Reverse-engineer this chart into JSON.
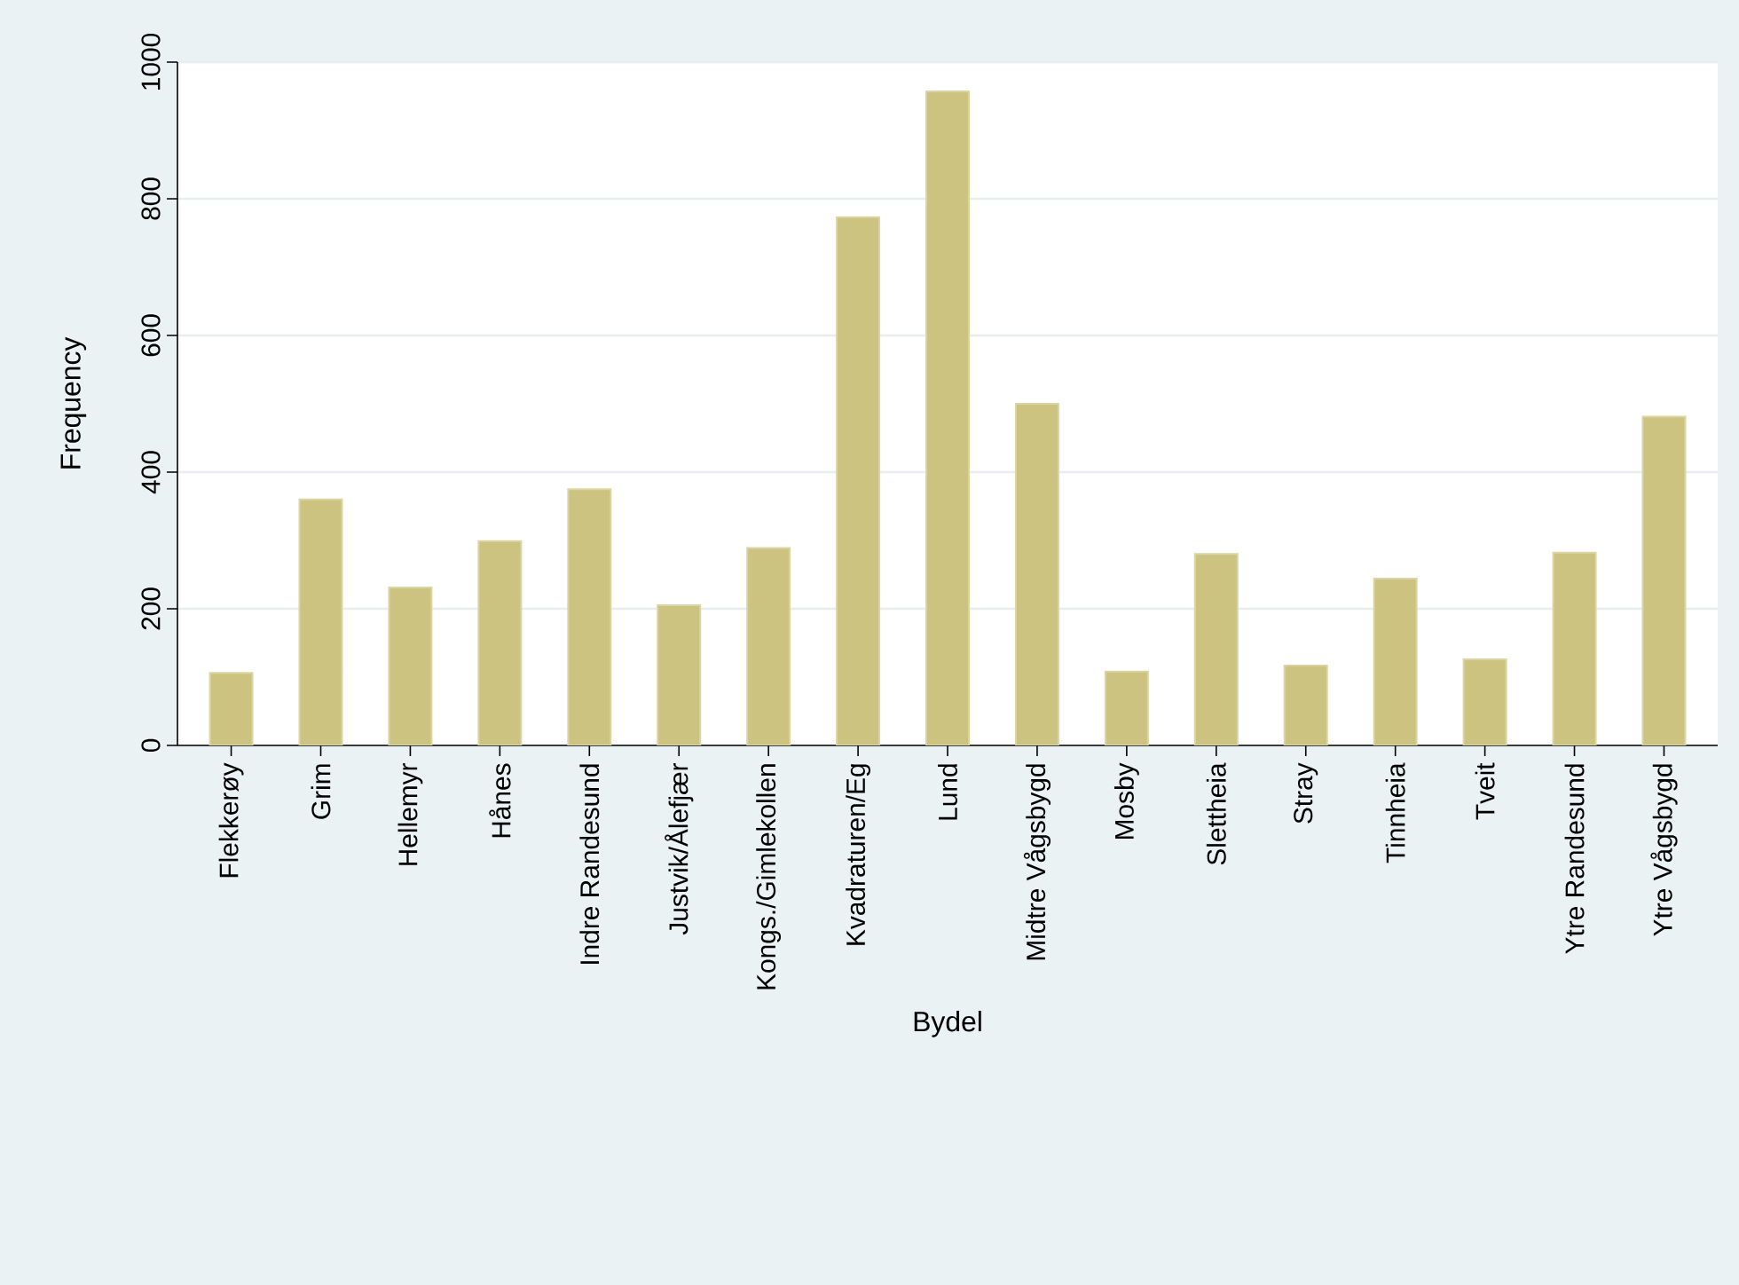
{
  "chart_data": {
    "type": "bar",
    "xlabel": "Bydel",
    "ylabel": "Frequency",
    "categories": [
      "Flekkerøy",
      "Grim",
      "Hellemyr",
      "Hånes",
      "Indre Randesund",
      "Justvik/Ålefjær",
      "Kongs./Gimlekollen",
      "Kvadraturen/Eg",
      "Lund",
      "Midtre Vågsbygd",
      "Mosby",
      "Slettheia",
      "Stray",
      "Tinnheia",
      "Tveit",
      "Ytre Randesund",
      "Ytre Vågsbygd"
    ],
    "values": [
      106,
      360,
      231,
      299,
      375,
      205,
      289,
      773,
      957,
      500,
      108,
      280,
      117,
      244,
      126,
      282,
      481
    ],
    "color": "#cbc37f",
    "ylim": [
      0,
      1000
    ],
    "yticks": [
      0,
      200,
      400,
      600,
      800,
      1000
    ],
    "grid": "y"
  }
}
